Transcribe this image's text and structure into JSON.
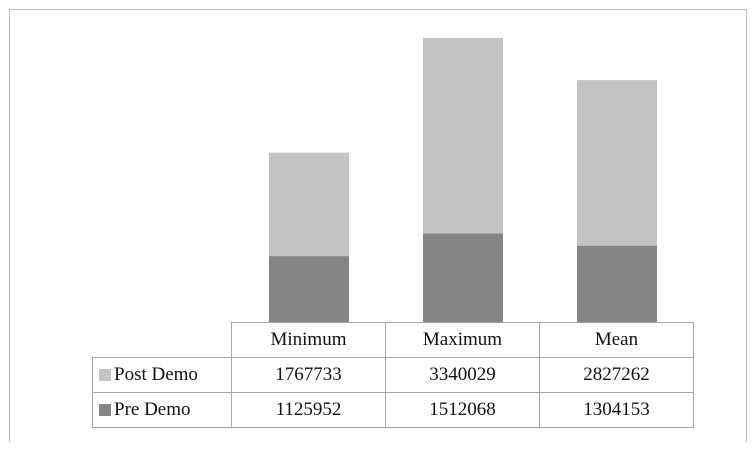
{
  "colors": {
    "post_demo": "#c4c4c4",
    "pre_demo": "#858585",
    "border": "#a6a6a6"
  },
  "chart_data": {
    "type": "bar",
    "stacked": true,
    "categories": [
      "Minimum",
      "Maximum",
      "Mean"
    ],
    "series": [
      {
        "name": "Pre Demo",
        "values": [
          1125952,
          1512068,
          1304153
        ]
      },
      {
        "name": "Post Demo",
        "values": [
          1767733,
          3340029,
          2827262
        ]
      }
    ],
    "ylim": [
      0,
      5500000
    ],
    "grid": false,
    "legend_placement": "data-table",
    "title": "",
    "xlabel": "",
    "ylabel": ""
  },
  "table": {
    "header": [
      "Minimum",
      "Maximum",
      "Mean"
    ],
    "rows": [
      {
        "label": "Post Demo",
        "values": [
          "1767733",
          "3340029",
          "2827262"
        ]
      },
      {
        "label": "Pre Demo",
        "values": [
          "1125952",
          "1512068",
          "1304153"
        ]
      }
    ]
  }
}
